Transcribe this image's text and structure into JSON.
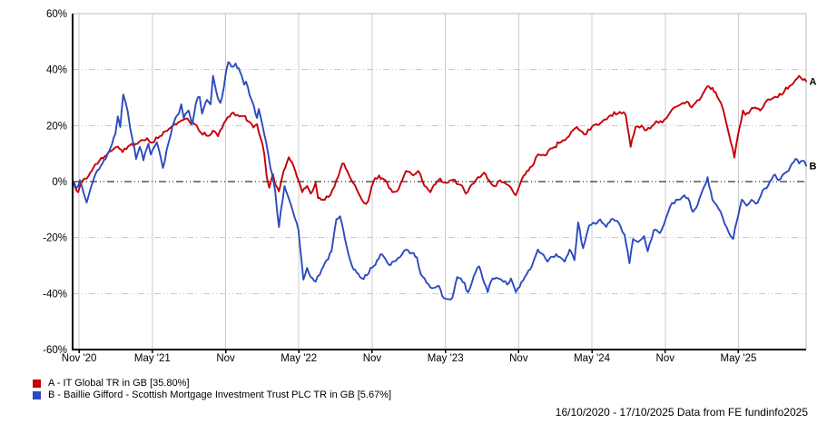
{
  "chart_data": {
    "type": "line",
    "title": "",
    "grid": true,
    "zero_line": true,
    "legend_position": "bottom-left",
    "x_axis": {
      "start_date": "16/10/2020",
      "end_date": "17/10/2025",
      "months_span": 60.07,
      "tick_months": [
        0.53,
        6.53,
        12.53,
        18.53,
        24.53,
        30.53,
        36.53,
        42.53,
        48.53,
        54.53
      ],
      "tick_labels": [
        "Nov '20",
        "May '21",
        "Nov",
        "May '22",
        "Nov",
        "May '23",
        "Nov",
        "May '24",
        "Nov",
        "May '25"
      ]
    },
    "y_axis": {
      "min": -60,
      "max": 60,
      "step": 20,
      "tick_values": [
        60,
        40,
        20,
        0,
        -20,
        -40,
        -60
      ],
      "tick_labels": [
        "60%",
        "40%",
        "20%",
        "0%",
        "-20%",
        "-40%",
        "-60%"
      ]
    },
    "series": [
      {
        "id": "A",
        "name": "IT Global TR in GB",
        "final_return_pct": 35.8,
        "color": "#c30008",
        "points": [
          [
            0,
            0
          ],
          [
            0.45,
            -3.8
          ],
          [
            0.8,
            0.3
          ],
          [
            1.3,
            2
          ],
          [
            1.7,
            5
          ],
          [
            2.2,
            7.5
          ],
          [
            2.8,
            9.5
          ],
          [
            3.2,
            11
          ],
          [
            3.7,
            12.5
          ],
          [
            4.1,
            10.5
          ],
          [
            4.7,
            13
          ],
          [
            5.3,
            13.5
          ],
          [
            5.8,
            14.8
          ],
          [
            6.1,
            15.5
          ],
          [
            6.5,
            14
          ],
          [
            7,
            15.5
          ],
          [
            7.6,
            18
          ],
          [
            8.2,
            20
          ],
          [
            8.8,
            21.5
          ],
          [
            9.4,
            22.5
          ],
          [
            10,
            20.5
          ],
          [
            10.5,
            17.5
          ],
          [
            11.1,
            16.3
          ],
          [
            11.5,
            18.2
          ],
          [
            11.9,
            16.2
          ],
          [
            12.4,
            21
          ],
          [
            13,
            24.3
          ],
          [
            13.5,
            23.8
          ],
          [
            14,
            23.4
          ],
          [
            14.4,
            21.5
          ],
          [
            14.8,
            19.3
          ],
          [
            15.1,
            20.5
          ],
          [
            15.4,
            15.5
          ],
          [
            15.7,
            9.7
          ],
          [
            15.9,
            1.6
          ],
          [
            16.1,
            -2.2
          ],
          [
            16.4,
            2.7
          ],
          [
            16.6,
            -1.1
          ],
          [
            16.9,
            -3.5
          ],
          [
            17.3,
            4
          ],
          [
            17.7,
            8.7
          ],
          [
            18.1,
            5.4
          ],
          [
            18.8,
            -3.8
          ],
          [
            19.2,
            -1.6
          ],
          [
            19.5,
            -4.3
          ],
          [
            19.9,
            -0.5
          ],
          [
            20.1,
            -5.9
          ],
          [
            20.5,
            -6.5
          ],
          [
            21.1,
            -4.9
          ],
          [
            21.6,
            0.5
          ],
          [
            22.1,
            6.5
          ],
          [
            22.5,
            3.8
          ],
          [
            23.1,
            -1.1
          ],
          [
            23.5,
            -4.9
          ],
          [
            23.85,
            -7.6
          ],
          [
            24.2,
            -7
          ],
          [
            24.6,
            -0.5
          ],
          [
            25.1,
            2.2
          ],
          [
            25.5,
            0.8
          ],
          [
            25.9,
            -2.2
          ],
          [
            26.2,
            -3.8
          ],
          [
            26.7,
            -2.7
          ],
          [
            27.3,
            3.8
          ],
          [
            27.9,
            2.2
          ],
          [
            28.3,
            3.8
          ],
          [
            28.8,
            -1.5
          ],
          [
            29.3,
            -3.8
          ],
          [
            29.7,
            -1
          ],
          [
            30.1,
            1.1
          ],
          [
            30.6,
            -0.5
          ],
          [
            31,
            0.5
          ],
          [
            31.75,
            -1.1
          ],
          [
            32.2,
            -4.3
          ],
          [
            32.7,
            -1
          ],
          [
            33.2,
            1.6
          ],
          [
            33.7,
            3.2
          ],
          [
            34.1,
            0.5
          ],
          [
            34.5,
            -1.6
          ],
          [
            35,
            0.5
          ],
          [
            35.4,
            -0.5
          ],
          [
            35.9,
            -2.2
          ],
          [
            36.3,
            -4.9
          ],
          [
            36.8,
            1
          ],
          [
            37.2,
            3.8
          ],
          [
            37.6,
            5.4
          ],
          [
            38.1,
            9.7
          ],
          [
            38.8,
            9.5
          ],
          [
            39.3,
            11.9
          ],
          [
            40,
            14.1
          ],
          [
            40.5,
            15.7
          ],
          [
            41.3,
            19.5
          ],
          [
            41.9,
            16.8
          ],
          [
            42.4,
            18.5
          ],
          [
            42.9,
            20.5
          ],
          [
            43.4,
            21.6
          ],
          [
            43.9,
            23.2
          ],
          [
            44.8,
            24.9
          ],
          [
            45.3,
            23.8
          ],
          [
            45.7,
            12.4
          ],
          [
            46.1,
            19.5
          ],
          [
            46.6,
            20
          ],
          [
            47,
            18.4
          ],
          [
            47.3,
            18.9
          ],
          [
            47.8,
            21.6
          ],
          [
            48.3,
            21.1
          ],
          [
            48.8,
            23.8
          ],
          [
            49.3,
            26.5
          ],
          [
            49.8,
            27.6
          ],
          [
            50.3,
            28.6
          ],
          [
            50.7,
            26.5
          ],
          [
            51,
            28.1
          ],
          [
            51.5,
            30.3
          ],
          [
            52,
            34.1
          ],
          [
            52.4,
            33.5
          ],
          [
            52.8,
            30.3
          ],
          [
            53.1,
            28.1
          ],
          [
            53.3,
            25.4
          ],
          [
            53.5,
            21.6
          ],
          [
            53.9,
            14.1
          ],
          [
            54.2,
            8.6
          ],
          [
            54.6,
            18.9
          ],
          [
            54.9,
            25.4
          ],
          [
            55.1,
            23.8
          ],
          [
            55.5,
            25.4
          ],
          [
            55.9,
            26.5
          ],
          [
            56.3,
            25.4
          ],
          [
            56.7,
            28.1
          ],
          [
            57.1,
            29.2
          ],
          [
            57.5,
            30.3
          ],
          [
            57.9,
            31.4
          ],
          [
            58.3,
            32.4
          ],
          [
            58.7,
            34.1
          ],
          [
            59.1,
            35.7
          ],
          [
            59.5,
            37.8
          ],
          [
            59.8,
            36.3
          ],
          [
            60.07,
            35.8
          ]
        ]
      },
      {
        "id": "B",
        "name": "Baillie Gifford - Scottish Mortgage Investment Trust PLC TR in GB",
        "final_return_pct": 5.67,
        "color": "#2c4bbe",
        "points": [
          [
            0,
            0
          ],
          [
            0.3,
            -2.5
          ],
          [
            0.6,
            0.5
          ],
          [
            0.9,
            -4
          ],
          [
            1.15,
            -7.5
          ],
          [
            1.5,
            -2
          ],
          [
            1.9,
            3
          ],
          [
            2.3,
            5.5
          ],
          [
            2.7,
            8
          ],
          [
            3.1,
            12
          ],
          [
            3.5,
            17
          ],
          [
            3.7,
            23.3
          ],
          [
            3.9,
            19.5
          ],
          [
            4.15,
            31.1
          ],
          [
            4.5,
            25.4
          ],
          [
            4.7,
            19.5
          ],
          [
            4.9,
            15.1
          ],
          [
            5.2,
            8.1
          ],
          [
            5.5,
            12.4
          ],
          [
            5.8,
            7.6
          ],
          [
            6.2,
            13.5
          ],
          [
            6.4,
            9.7
          ],
          [
            6.7,
            12.4
          ],
          [
            6.9,
            14
          ],
          [
            7.1,
            10.8
          ],
          [
            7.4,
            4.9
          ],
          [
            7.7,
            11.4
          ],
          [
            7.9,
            14.6
          ],
          [
            8.3,
            21.1
          ],
          [
            8.7,
            24.3
          ],
          [
            8.9,
            27.6
          ],
          [
            9.1,
            22.7
          ],
          [
            9.5,
            25.4
          ],
          [
            9.8,
            20.5
          ],
          [
            10.1,
            28.1
          ],
          [
            10.4,
            30.3
          ],
          [
            10.6,
            24.3
          ],
          [
            11,
            29.2
          ],
          [
            11.3,
            27.6
          ],
          [
            11.5,
            37.8
          ],
          [
            11.9,
            29.7
          ],
          [
            12.1,
            28.1
          ],
          [
            12.4,
            34.1
          ],
          [
            12.55,
            38.9
          ],
          [
            12.75,
            42.7
          ],
          [
            13,
            41.1
          ],
          [
            13.35,
            42.2
          ],
          [
            13.6,
            40.5
          ],
          [
            13.85,
            37.8
          ],
          [
            14.05,
            34.6
          ],
          [
            14.2,
            35.7
          ],
          [
            14.5,
            30.8
          ],
          [
            14.85,
            27
          ],
          [
            15.1,
            22.7
          ],
          [
            15.25,
            25.9
          ],
          [
            15.5,
            21.1
          ],
          [
            15.7,
            16.8
          ],
          [
            16,
            10.3
          ],
          [
            16.2,
            4.9
          ],
          [
            16.4,
            1.6
          ],
          [
            16.6,
            -3.8
          ],
          [
            16.9,
            -16.2
          ],
          [
            17.35,
            -1.6
          ],
          [
            17.9,
            -8.6
          ],
          [
            18.5,
            -17.3
          ],
          [
            18.9,
            -35
          ],
          [
            19.2,
            -30.8
          ],
          [
            19.5,
            -34.1
          ],
          [
            19.9,
            -35.7
          ],
          [
            20.4,
            -31.4
          ],
          [
            20.8,
            -28.1
          ],
          [
            21.2,
            -24.9
          ],
          [
            21.6,
            -13.5
          ],
          [
            21.9,
            -12.4
          ],
          [
            22.3,
            -20.5
          ],
          [
            22.7,
            -27.6
          ],
          [
            23,
            -31.4
          ],
          [
            23.4,
            -33
          ],
          [
            23.7,
            -34.6
          ],
          [
            24.1,
            -33.5
          ],
          [
            24.4,
            -30.8
          ],
          [
            24.8,
            -29.7
          ],
          [
            25.2,
            -26
          ],
          [
            25.6,
            -27.5
          ],
          [
            25.9,
            -29.7
          ],
          [
            26.3,
            -28.5
          ],
          [
            26.8,
            -27
          ],
          [
            27.3,
            -24.3
          ],
          [
            27.8,
            -25.5
          ],
          [
            28.2,
            -27
          ],
          [
            28.5,
            -33
          ],
          [
            29.3,
            -37.8
          ],
          [
            30,
            -37.3
          ],
          [
            30.4,
            -41.6
          ],
          [
            30.7,
            -42
          ],
          [
            31.1,
            -41.5
          ],
          [
            31.5,
            -34.1
          ],
          [
            31.8,
            -34.6
          ],
          [
            32.4,
            -39.5
          ],
          [
            33,
            -32.4
          ],
          [
            33.3,
            -30.3
          ],
          [
            34,
            -39.5
          ],
          [
            34.4,
            -34.6
          ],
          [
            35.1,
            -35
          ],
          [
            35.6,
            -36.8
          ],
          [
            35.9,
            -34.6
          ],
          [
            36.3,
            -39.5
          ],
          [
            37.2,
            -33
          ],
          [
            37.6,
            -30.3
          ],
          [
            38.1,
            -24.3
          ],
          [
            38.9,
            -28.6
          ],
          [
            39.6,
            -25.9
          ],
          [
            40.3,
            -28.6
          ],
          [
            40.7,
            -24.3
          ],
          [
            41.1,
            -28.1
          ],
          [
            41.4,
            -14.6
          ],
          [
            41.8,
            -23.8
          ],
          [
            42.3,
            -15.7
          ],
          [
            42.8,
            -15.1
          ],
          [
            43.2,
            -13.5
          ],
          [
            43.7,
            -16.2
          ],
          [
            44.1,
            -13.5
          ],
          [
            44.7,
            -14.6
          ],
          [
            45.2,
            -19
          ],
          [
            45.6,
            -29.2
          ],
          [
            45.9,
            -20.5
          ],
          [
            46.3,
            -21.6
          ],
          [
            46.8,
            -19.5
          ],
          [
            47.1,
            -24.9
          ],
          [
            47.6,
            -17.3
          ],
          [
            48.1,
            -18.4
          ],
          [
            48.6,
            -13
          ],
          [
            49.1,
            -7.6
          ],
          [
            49.6,
            -6.5
          ],
          [
            50.1,
            -4.9
          ],
          [
            50.4,
            -5.9
          ],
          [
            50.8,
            -10.8
          ],
          [
            51.2,
            -8.1
          ],
          [
            51.6,
            -3
          ],
          [
            52,
            1.6
          ],
          [
            52.4,
            -6.5
          ],
          [
            52.9,
            -9.7
          ],
          [
            53.4,
            -15.1
          ],
          [
            53.9,
            -19.5
          ],
          [
            54.1,
            -20.5
          ],
          [
            54.4,
            -14.1
          ],
          [
            54.8,
            -6.5
          ],
          [
            55.2,
            -8.6
          ],
          [
            55.6,
            -6.5
          ],
          [
            56.1,
            -7.6
          ],
          [
            56.5,
            -3.2
          ],
          [
            57,
            -1.1
          ],
          [
            57.4,
            2.2
          ],
          [
            57.8,
            0.5
          ],
          [
            58.3,
            3
          ],
          [
            58.8,
            5.5
          ],
          [
            59.2,
            8.1
          ],
          [
            59.5,
            6.5
          ],
          [
            59.8,
            7.5
          ],
          [
            60.07,
            5.67
          ]
        ]
      }
    ],
    "colors": {
      "grid": "#c9c9c9",
      "axis": "#000000",
      "border": "#bbbbbb",
      "zero_line": "#000000"
    }
  },
  "legend": {
    "items": [
      {
        "label": "A - IT Global TR in GB [35.80%]",
        "color": "#c30008"
      },
      {
        "label": "B - Baillie Gifford - Scottish Mortgage Investment Trust PLC TR in GB [5.67%]",
        "color": "#2c4bbe"
      }
    ]
  },
  "footer": {
    "text": "16/10/2020 - 17/10/2025 Data from FE fundinfo2025"
  }
}
